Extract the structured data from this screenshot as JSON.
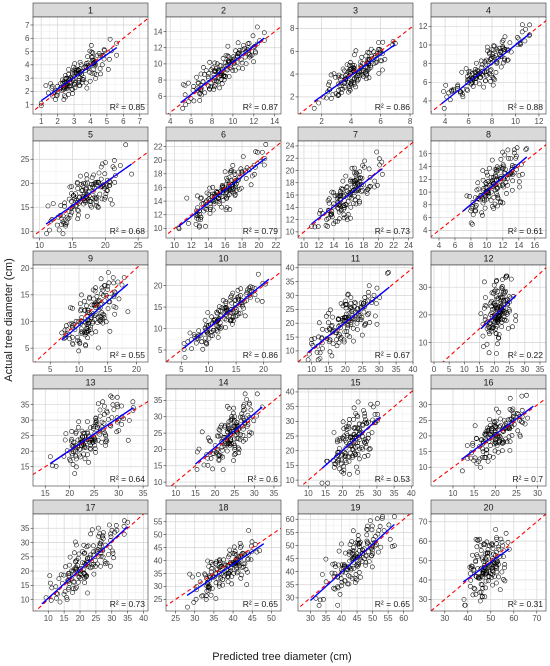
{
  "chart_data": {
    "type": "scatter",
    "xlabel": "Predicted tree diameter (cm)",
    "ylabel": "Actual tree diameter (cm)",
    "grid": true,
    "reference_line": "y = x (red dashed)",
    "fit_line_color": "#0000ff",
    "reference_line_color": "#ff0000",
    "point_color": "#000000",
    "strip_color": "#d9d9d9",
    "panels": [
      {
        "label": "1",
        "r2": "R² = 0.85",
        "xticks": [
          1,
          2,
          3,
          4,
          5,
          6,
          7
        ],
        "yticks": [
          1,
          2,
          3,
          4,
          5,
          6,
          7
        ],
        "xlim": [
          0.5,
          7.5
        ],
        "ylim": [
          0.3,
          7.6
        ],
        "px": [
          1.0,
          5.6
        ],
        "py": [
          0.7,
          6.8
        ],
        "fit": [
          [
            1.0,
            1.3
          ],
          [
            5.6,
            5.3
          ]
        ]
      },
      {
        "label": "2",
        "r2": "R² = 0.87",
        "xticks": [
          4,
          6,
          8,
          10,
          12,
          14
        ],
        "yticks": [
          6,
          8,
          10,
          12,
          14
        ],
        "xlim": [
          3.6,
          14.6
        ],
        "ylim": [
          3.8,
          15.8
        ],
        "px": [
          5.0,
          13.0
        ],
        "py": [
          4.5,
          14.8
        ],
        "fit": [
          [
            5.0,
            5.2
          ],
          [
            13.0,
            13.2
          ]
        ]
      },
      {
        "label": "3",
        "r2": "R² = 0.86",
        "xticks": [
          2,
          4,
          6,
          8
        ],
        "yticks": [
          2,
          4,
          6,
          8
        ],
        "xlim": [
          0.4,
          8.2
        ],
        "ylim": [
          0.5,
          9.0
        ],
        "px": [
          1.5,
          7.0
        ],
        "py": [
          1.0,
          8.6
        ],
        "fit": [
          [
            1.5,
            1.6
          ],
          [
            7.0,
            6.6
          ]
        ]
      },
      {
        "label": "4",
        "r2": "R² = 0.88",
        "xticks": [
          4,
          6,
          8,
          10,
          12
        ],
        "yticks": [
          4,
          6,
          8,
          10,
          12
        ],
        "xlim": [
          2.8,
          12.6
        ],
        "ylim": [
          2.6,
          13.0
        ],
        "px": [
          3.7,
          11.2
        ],
        "py": [
          3.2,
          12.5
        ],
        "fit": [
          [
            3.7,
            3.7
          ],
          [
            11.2,
            11.2
          ]
        ]
      },
      {
        "label": "5",
        "r2": "R² = 0.68",
        "xticks": [
          10,
          15,
          20,
          25
        ],
        "yticks": [
          10,
          15,
          20,
          25
        ],
        "xlim": [
          9.0,
          26.5
        ],
        "ylim": [
          8.6,
          28.8
        ],
        "px": [
          11.0,
          24.0
        ],
        "py": [
          9.5,
          28.0
        ],
        "fit": [
          [
            11.0,
            11.5
          ],
          [
            24.0,
            24.0
          ]
        ]
      },
      {
        "label": "6",
        "r2": "R² = 0.79",
        "xticks": [
          10,
          12,
          14,
          16,
          18,
          20,
          22
        ],
        "yticks": [
          10,
          12,
          14,
          16,
          18,
          20,
          22
        ],
        "xlim": [
          9.0,
          22.6
        ],
        "ylim": [
          8.6,
          22.8
        ],
        "px": [
          10.5,
          20.8
        ],
        "py": [
          9.5,
          22.3
        ],
        "fit": [
          [
            10.5,
            10.3
          ],
          [
            20.8,
            20.3
          ]
        ]
      },
      {
        "label": "7",
        "r2": "R² = 0.73",
        "xticks": [
          10,
          12,
          14,
          16,
          18,
          20,
          22,
          24
        ],
        "yticks": [
          10,
          12,
          14,
          16,
          18,
          20,
          22,
          24
        ],
        "xlim": [
          9.2,
          24.6
        ],
        "ylim": [
          9.0,
          24.8
        ],
        "px": [
          11.0,
          20.5
        ],
        "py": [
          9.6,
          24.2
        ],
        "fit": [
          [
            11.0,
            11.3
          ],
          [
            20.5,
            20.3
          ]
        ]
      },
      {
        "label": "8",
        "r2": "R² = 0.61",
        "xticks": [
          4,
          6,
          8,
          10,
          12,
          14,
          16
        ],
        "yticks": [
          4,
          6,
          8,
          10,
          12,
          14,
          16
        ],
        "xlim": [
          3.0,
          17.4
        ],
        "ylim": [
          2.8,
          18.0
        ],
        "px": [
          7.0,
          15.0
        ],
        "py": [
          3.5,
          17.2
        ],
        "fit": [
          [
            7.0,
            7.0
          ],
          [
            15.0,
            15.5
          ]
        ]
      },
      {
        "label": "9",
        "r2": "R² = 0.55",
        "xticks": [
          5,
          10,
          15,
          20
        ],
        "yticks": [
          5,
          10,
          15,
          20
        ],
        "xlim": [
          2.0,
          22.0
        ],
        "ylim": [
          2.4,
          20.6
        ],
        "px": [
          7.0,
          18.5
        ],
        "py": [
          3.0,
          20.0
        ],
        "fit": [
          [
            7.0,
            6.5
          ],
          [
            18.5,
            17.0
          ]
        ]
      },
      {
        "label": "10",
        "r2": "R² = 0.86",
        "xticks": [
          5,
          10,
          15,
          20
        ],
        "yticks": [
          5,
          10,
          15,
          20
        ],
        "xlim": [
          2.2,
          23.2
        ],
        "ylim": [
          2.2,
          24.8
        ],
        "px": [
          5.5,
          21.0
        ],
        "py": [
          3.0,
          23.5
        ],
        "fit": [
          [
            5.5,
            5.5
          ],
          [
            21.0,
            21.5
          ]
        ]
      },
      {
        "label": "11",
        "r2": "R² = 0.67",
        "xticks": [
          10,
          15,
          20,
          25,
          30,
          35,
          40
        ],
        "yticks": [
          10,
          15,
          20,
          25,
          30,
          35,
          40
        ],
        "xlim": [
          6.0,
          40.0
        ],
        "ylim": [
          6.0,
          41.0
        ],
        "px": [
          9.0,
          33.0
        ],
        "py": [
          6.8,
          39.5
        ],
        "fit": [
          [
            9.0,
            9.5
          ],
          [
            33.0,
            33.0
          ]
        ]
      },
      {
        "label": "12",
        "r2": "R² = 0.22",
        "xticks": [
          0,
          5,
          10,
          15,
          20,
          25,
          30,
          35
        ],
        "yticks": [
          10,
          20,
          30
        ],
        "xlim": [
          -1.0,
          37.0
        ],
        "ylim": [
          3.0,
          38.0
        ],
        "px": [
          15.5,
          27.0
        ],
        "py": [
          4.0,
          34.0
        ],
        "fit": [
          [
            15.5,
            15.0
          ],
          [
            27.0,
            27.0
          ]
        ]
      },
      {
        "label": "13",
        "r2": "R² = 0.64",
        "xticks": [
          15,
          20,
          25,
          30,
          35
        ],
        "yticks": [
          15,
          20,
          25,
          30,
          35
        ],
        "xlim": [
          12.5,
          36.0
        ],
        "ylim": [
          8.8,
          40.0
        ],
        "px": [
          16.0,
          33.0
        ],
        "py": [
          10.0,
          39.0
        ],
        "fit": [
          [
            16.0,
            16.0
          ],
          [
            33.0,
            34.0
          ]
        ]
      },
      {
        "label": "14",
        "r2": "R² = 0.6",
        "xticks": [
          10,
          15,
          20,
          25,
          30,
          35
        ],
        "yticks": [
          10,
          15,
          20,
          25,
          30,
          35
        ],
        "xlim": [
          7.5,
          36.8
        ],
        "ylim": [
          8.8,
          38.5
        ],
        "px": [
          15.0,
          32.0
        ],
        "py": [
          10.0,
          37.0
        ],
        "fit": [
          [
            15.0,
            15.5
          ],
          [
            32.0,
            33.0
          ]
        ]
      },
      {
        "label": "15",
        "r2": "R² = 0.53",
        "xticks": [
          10,
          15,
          20,
          25,
          30,
          35,
          40
        ],
        "yticks": [
          10,
          15,
          20,
          25,
          30,
          35,
          40
        ],
        "xlim": [
          7.0,
          40.5
        ],
        "ylim": [
          8.0,
          41.0
        ],
        "px": [
          14.0,
          31.0
        ],
        "py": [
          9.0,
          40.0
        ],
        "fit": [
          [
            14.0,
            14.0
          ],
          [
            31.0,
            31.5
          ]
        ]
      },
      {
        "label": "16",
        "r2": "R² = 0.7",
        "xticks": [
          10,
          15,
          20,
          25,
          30
        ],
        "yticks": [
          10,
          15,
          20,
          25,
          30
        ],
        "xlim": [
          4.8,
          32.0
        ],
        "ylim": [
          4.0,
          35.0
        ],
        "px": [
          12.0,
          29.0
        ],
        "py": [
          5.5,
          33.0
        ],
        "fit": [
          [
            12.0,
            12.5
          ],
          [
            29.0,
            29.5
          ]
        ]
      },
      {
        "label": "17",
        "r2": "R² = 0.73",
        "xticks": [
          10,
          15,
          20,
          25,
          30,
          35,
          40
        ],
        "yticks": [
          10,
          15,
          20,
          25,
          30,
          35
        ],
        "xlim": [
          5.2,
          41.4
        ],
        "ylim": [
          6.0,
          40.0
        ],
        "px": [
          8.0,
          35.0
        ],
        "py": [
          7.0,
          39.0
        ],
        "fit": [
          [
            8.0,
            8.5
          ],
          [
            35.0,
            35.5
          ]
        ]
      },
      {
        "label": "18",
        "r2": "R² = 0.65",
        "xticks": [
          25,
          30,
          35,
          40,
          45,
          50
        ],
        "yticks": [
          25,
          30,
          35,
          40,
          45,
          50,
          55
        ],
        "xlim": [
          22.5,
          52.5
        ],
        "ylim": [
          20.5,
          58.0
        ],
        "px": [
          28.0,
          48.0
        ],
        "py": [
          22.0,
          56.0
        ],
        "fit": [
          [
            28.0,
            26.5
          ],
          [
            48.0,
            46.5
          ]
        ]
      },
      {
        "label": "19",
        "r2": "R² = 0.65",
        "xticks": [
          30,
          35,
          40,
          45,
          50,
          55,
          60
        ],
        "yticks": [
          30,
          35,
          40,
          45,
          50,
          55,
          60
        ],
        "xlim": [
          26.0,
          63.0
        ],
        "ylim": [
          25.0,
          62.0
        ],
        "px": [
          30.0,
          57.0
        ],
        "py": [
          26.0,
          61.0
        ],
        "fit": [
          [
            30.0,
            29.0
          ],
          [
            57.0,
            58.0
          ]
        ]
      },
      {
        "label": "20",
        "r2": "R² = 0.31",
        "xticks": [
          30,
          40,
          50,
          60,
          70
        ],
        "yticks": [
          30,
          40,
          50,
          60,
          70
        ],
        "xlim": [
          24.0,
          74.0
        ],
        "ylim": [
          24.0,
          74.0
        ],
        "px": [
          38.0,
          58.0
        ],
        "py": [
          27.0,
          70.0
        ],
        "fit": [
          [
            38.0,
            39.0
          ],
          [
            58.0,
            56.0
          ]
        ]
      }
    ]
  }
}
